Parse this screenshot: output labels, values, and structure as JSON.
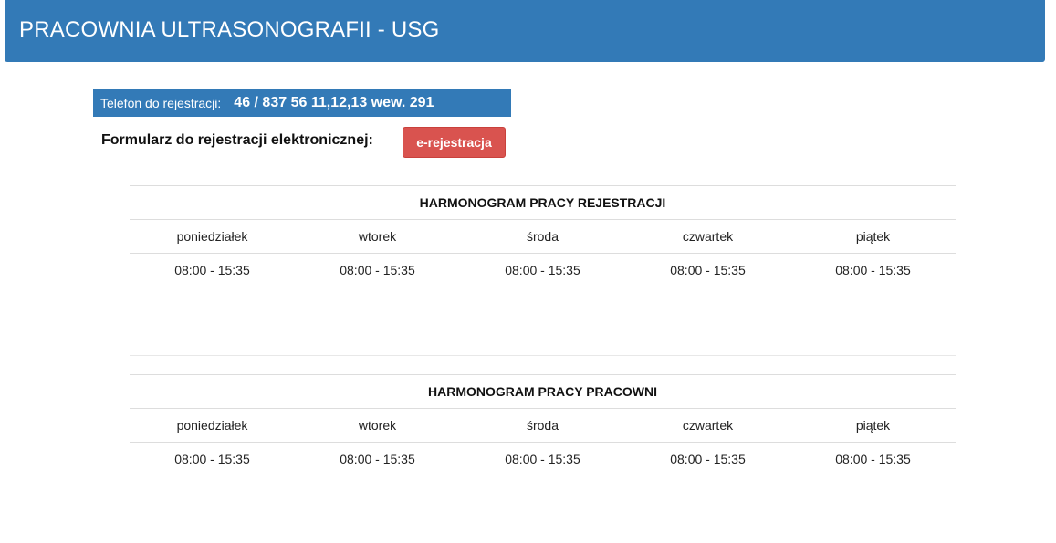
{
  "header": {
    "title": "PRACOWNIA ULTRASONOGRAFII - USG"
  },
  "phone": {
    "label": "Telefon do rejestracji:",
    "number": "46 / 837 56 11,12,13 wew. 291"
  },
  "form": {
    "label": "Formularz do rejestracji elektronicznej:",
    "button_label": "e-rejestracja"
  },
  "schedules": [
    {
      "title": "HARMONOGRAM PRACY REJESTRACJI",
      "days": [
        "poniedziałek",
        "wtorek",
        "środa",
        "czwartek",
        "piątek"
      ],
      "hours": [
        "08:00 - 15:35",
        "08:00 - 15:35",
        "08:00 - 15:35",
        "08:00 - 15:35",
        "08:00 - 15:35"
      ]
    },
    {
      "title": "HARMONOGRAM PRACY PRACOWNI",
      "days": [
        "poniedziałek",
        "wtorek",
        "środa",
        "czwartek",
        "piątek"
      ],
      "hours": [
        "08:00 - 15:35",
        "08:00 - 15:35",
        "08:00 - 15:35",
        "08:00 - 15:35",
        "08:00 - 15:35"
      ]
    }
  ],
  "colors": {
    "primary": "#337ab7",
    "danger": "#d9534f",
    "border": "#dddddd"
  }
}
